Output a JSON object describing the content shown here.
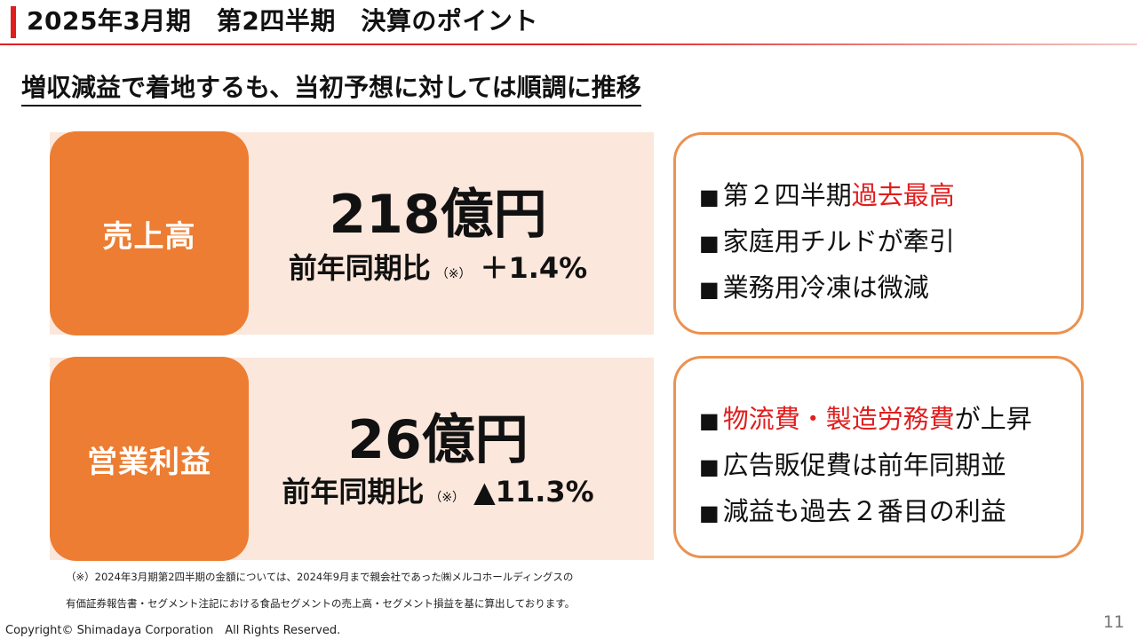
{
  "header": {
    "title": "2025年3月期　第2四半期　決算のポイント",
    "subtitle": "増収減益で着地するも、当初予想に対しては順調に推移"
  },
  "panels": [
    {
      "label": "売上高",
      "value": "218億円",
      "change_label": "前年同期比",
      "note_mark": "（※）",
      "change_value": "＋1.4%",
      "points": [
        {
          "bullet": "■",
          "parts": [
            {
              "text": "第２四半期",
              "highlight": false
            },
            {
              "text": "過去最高",
              "highlight": true
            }
          ]
        },
        {
          "bullet": "■",
          "parts": [
            {
              "text": "家庭用チルドが牽引",
              "highlight": false
            }
          ]
        },
        {
          "bullet": "■",
          "parts": [
            {
              "text": "業務用冷凍は微減",
              "highlight": false
            }
          ]
        }
      ]
    },
    {
      "label": "営業利益",
      "value": "26億円",
      "change_label": "前年同期比",
      "note_mark": "（※）",
      "change_value": "▲11.3%",
      "points": [
        {
          "bullet": "■",
          "parts": [
            {
              "text": "物流費・製造労務費",
              "highlight": true
            },
            {
              "text": "が上昇",
              "highlight": false
            }
          ]
        },
        {
          "bullet": "■",
          "parts": [
            {
              "text": "広告販促費は前年同期並",
              "highlight": false
            }
          ]
        },
        {
          "bullet": "■",
          "parts": [
            {
              "text": "減益も過去２番目の利益",
              "highlight": false
            }
          ]
        }
      ]
    }
  ],
  "footnotes": [
    "（※）2024年3月期第2四半期の金額については、2024年9月まで親会社であった㈱メルコホールディングスの",
    "有価証券報告書・セグメント注記における食品セグメントの売上高・セグメント損益を基に算出しております。"
  ],
  "footer": {
    "copyright": "Copyright© Shimadaya Corporation　All Rights Reserved.",
    "page_number": "11"
  },
  "colors": {
    "accent_red": "#e01e1e",
    "label_orange": "#ec7d32",
    "panel_peach": "#fbe7dc",
    "box_border": "#ec9150"
  }
}
